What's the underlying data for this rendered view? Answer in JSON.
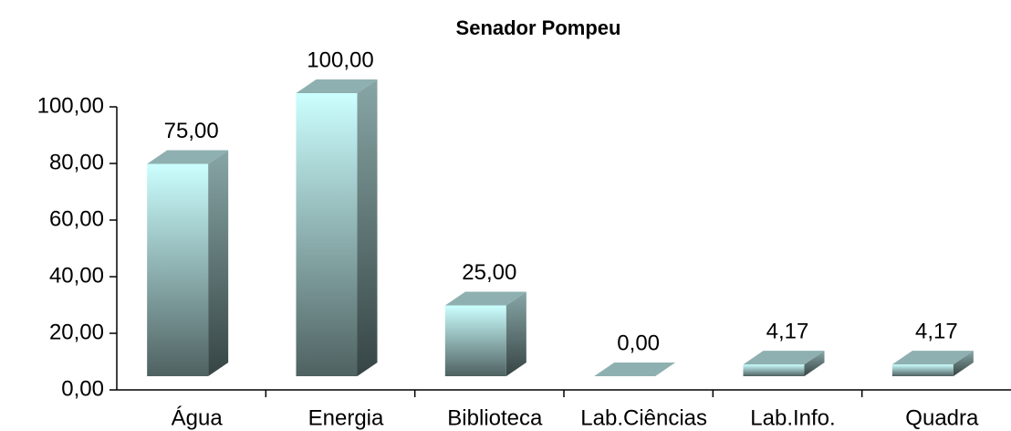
{
  "chart_data": {
    "type": "bar3d",
    "title": "Senador Pompeu",
    "categories": [
      "Água",
      "Energia",
      "Biblioteca",
      "Lab.Ciências",
      "Lab.Info.",
      "Quadra"
    ],
    "values": [
      75,
      100,
      25,
      0,
      4.17,
      4.17
    ],
    "value_labels": [
      "75,00",
      "100,00",
      "25,00",
      "0,00",
      "4,17",
      "4,17"
    ],
    "color": "#ccffff",
    "ylim": [
      0,
      100
    ],
    "yticks": [
      {
        "value": 0,
        "label": "0,00"
      },
      {
        "value": 20,
        "label": "20,00"
      },
      {
        "value": 40,
        "label": "40,00"
      },
      {
        "value": 60,
        "label": "60,00"
      },
      {
        "value": 80,
        "label": "80,00"
      },
      {
        "value": 100,
        "label": "100,00"
      }
    ]
  }
}
